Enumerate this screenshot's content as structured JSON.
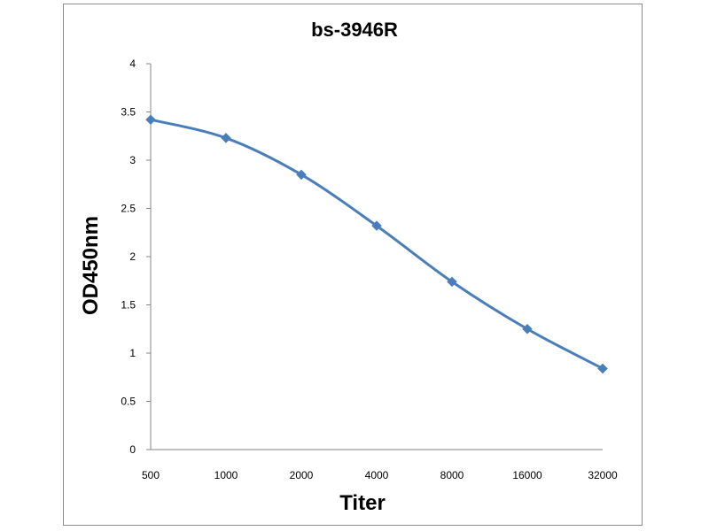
{
  "chart_data": {
    "type": "line",
    "title": "bs-3946R",
    "xlabel": "Titer",
    "ylabel": "OD450nm",
    "categories": [
      "500",
      "1000",
      "2000",
      "4000",
      "8000",
      "16000",
      "32000"
    ],
    "series": [
      {
        "values": [
          3.42,
          3.23,
          2.85,
          2.32,
          1.74,
          1.25,
          0.84
        ]
      }
    ],
    "ylim": [
      0,
      4
    ],
    "yticks": [
      "0",
      "0.5",
      "1",
      "1.5",
      "2",
      "2.5",
      "3",
      "3.5",
      "4"
    ],
    "grid": false,
    "legend": "none",
    "line_color": "#4a7ebb",
    "marker": "diamond"
  }
}
